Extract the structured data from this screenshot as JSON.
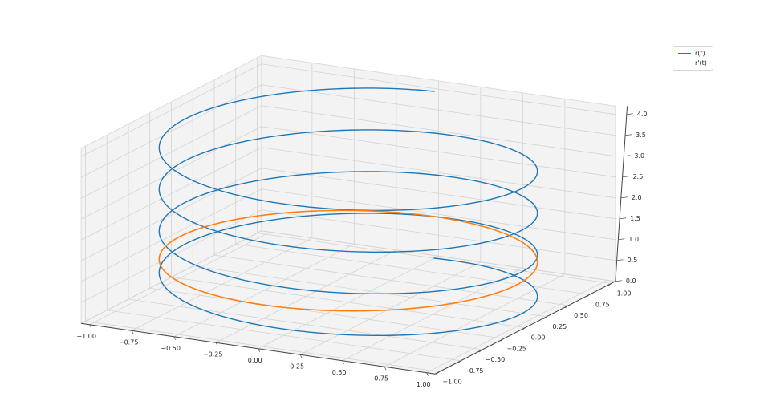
{
  "chart_data": {
    "type": "line3d",
    "title": "",
    "figure_bg": "#ffffff",
    "pane_color": "#f3f3f3",
    "pane_edge_color": "#dcdcdc",
    "grid_color": "#d4d4d4",
    "axis_line_color": "#444444",
    "tick_color": "#555555",
    "tick_label_color": "#262626",
    "x_axis": {
      "min": -1.05,
      "max": 1.05,
      "ticks": [
        -1,
        -0.75,
        -0.5,
        -0.25,
        0,
        0.25,
        0.5,
        0.75,
        1
      ],
      "tick_labels": [
        "−1.00",
        "−0.75",
        "−0.50",
        "−0.25",
        "0.00",
        "0.25",
        "0.50",
        "0.75",
        "1.00"
      ]
    },
    "y_axis": {
      "min": -1.05,
      "max": 1.05,
      "ticks": [
        -1,
        -0.75,
        -0.5,
        -0.25,
        0,
        0.25,
        0.5,
        0.75,
        1
      ],
      "tick_labels": [
        "−1.00",
        "−0.75",
        "−0.50",
        "−0.25",
        "0.00",
        "0.25",
        "0.50",
        "0.75",
        "1.00"
      ]
    },
    "z_axis": {
      "min": 0,
      "max": 4.2,
      "ticks": [
        0,
        0.5,
        1,
        1.5,
        2,
        2.5,
        3,
        3.5,
        4
      ],
      "tick_labels": [
        "0.0",
        "0.5",
        "1.0",
        "1.5",
        "2.0",
        "2.5",
        "3.0",
        "3.5",
        "4.0"
      ]
    },
    "series": [
      {
        "name": "r(t)",
        "color": "#1f77b4",
        "line_width": 1.4,
        "formula": "x=sin(t), y=cos(t), z=t/(2π)",
        "t_min": 0,
        "t_max": 25.132741,
        "samples": 900,
        "phase_x": -1.5707963,
        "phase_y": 0,
        "z0": 0,
        "z_rate": 0.15915494
      },
      {
        "name": "r'(t)",
        "color": "#ff7f0e",
        "line_width": 1.6,
        "formula": "x=cos(t), y=−sin(t), z=1",
        "t_min": 0,
        "t_max": 6.2831853,
        "samples": 360,
        "phase_x": 0,
        "phase_y": 1.5707963,
        "z0": 1,
        "z_rate": 0
      }
    ],
    "legend": {
      "items": [
        {
          "label": "r(t)",
          "color": "#1f77b4"
        },
        {
          "label": "r'(t)",
          "color": "#ff7f0e"
        }
      ]
    }
  }
}
